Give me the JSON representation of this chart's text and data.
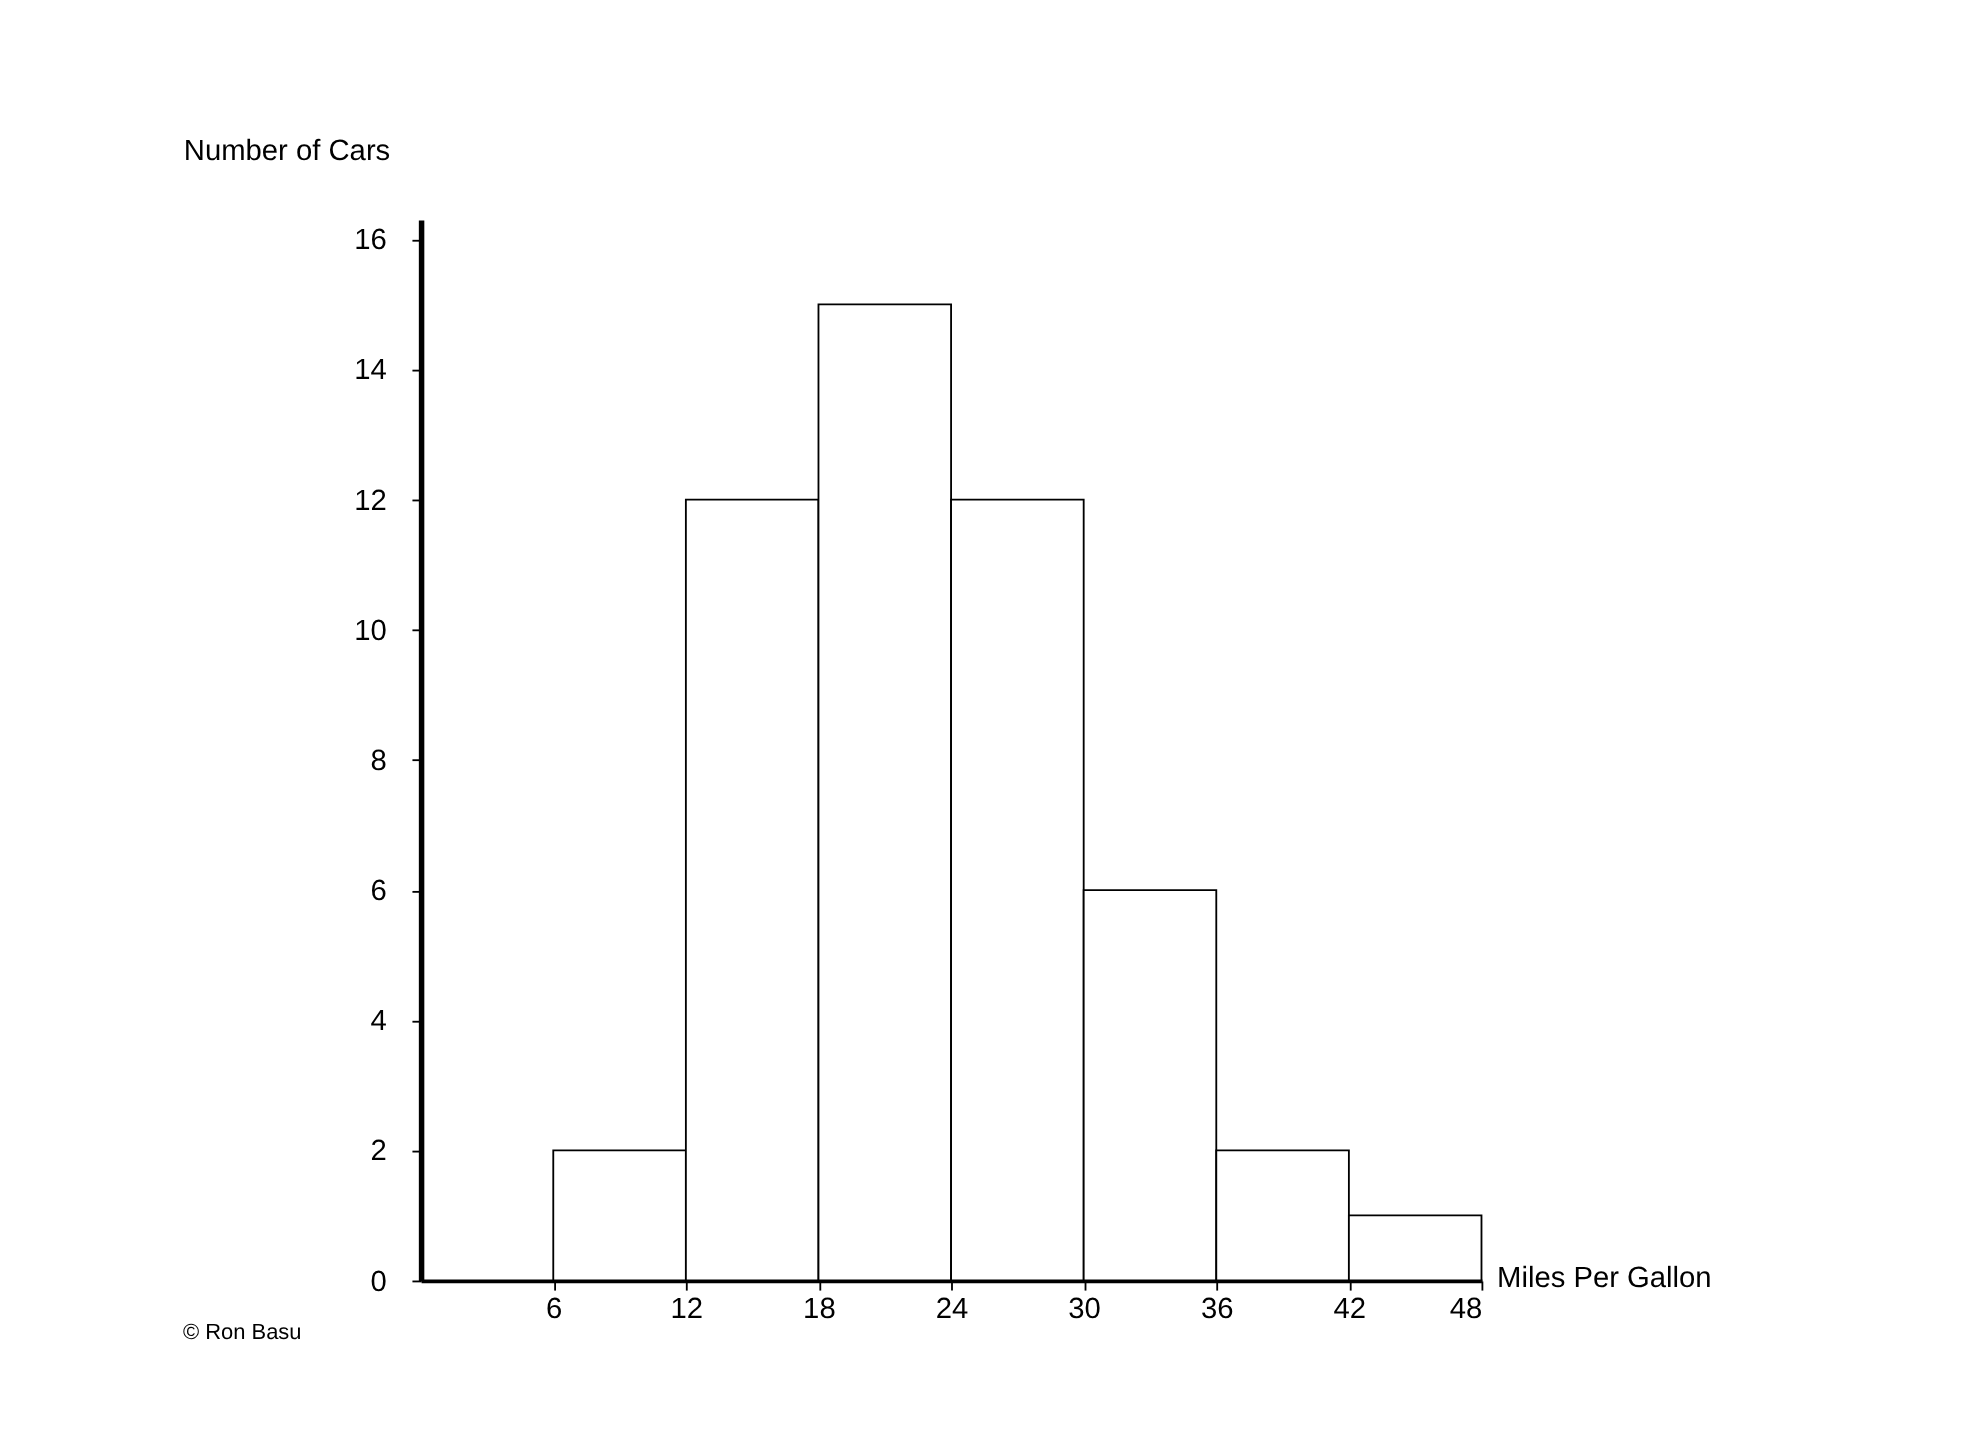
{
  "chart_data": {
    "type": "histogram",
    "xlabel": "Miles Per Gallon",
    "ylabel": "Number of Cars",
    "bins": [
      6,
      12,
      18,
      24,
      30,
      36,
      42,
      48
    ],
    "values": [
      2,
      12,
      15,
      12,
      6,
      2,
      1
    ],
    "color": "#ffffff",
    "xlim": [
      0,
      48
    ],
    "xticks": [
      6,
      12,
      18,
      24,
      30,
      36,
      42,
      48
    ],
    "ylim": [
      0,
      16.3
    ],
    "yticks": [
      0,
      2,
      4,
      6,
      8,
      10,
      12,
      14,
      16
    ],
    "grid": false,
    "annotations": [
      "© Ron Basu"
    ]
  }
}
